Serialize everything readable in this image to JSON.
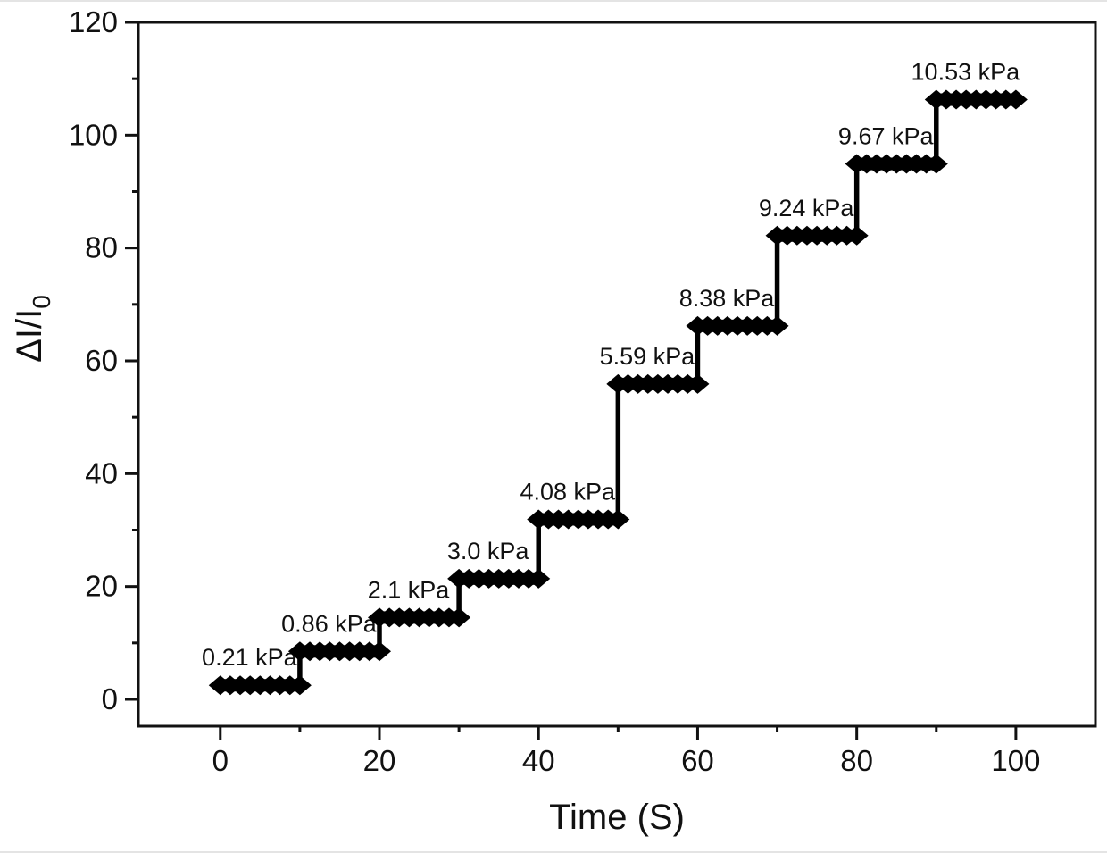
{
  "figure": {
    "background": "#ffffff",
    "ink_color": "#111111",
    "marker_color": "#000000"
  },
  "chart_data": {
    "type": "step",
    "title": "",
    "xlabel": "Time (S)",
    "ylabel": "ΔI/I₀",
    "ylabel_base": "ΔI/I",
    "ylabel_sub": "0",
    "xlim": [
      -10.3,
      110
    ],
    "ylim": [
      -4.75,
      120
    ],
    "x_major_ticks": [
      0,
      20,
      40,
      60,
      80,
      100
    ],
    "x_minor_ticks": [
      10,
      30,
      50,
      70,
      90
    ],
    "y_major_ticks": [
      0,
      20,
      40,
      60,
      80,
      100,
      120
    ],
    "y_minor_ticks": [
      10,
      30,
      50,
      70,
      90,
      110
    ],
    "grid": false,
    "legend": "none",
    "marker": "diamond",
    "series": [
      {
        "name": "pressure-step-response",
        "steps": [
          {
            "label": "0.21 kPa",
            "t_start": 0,
            "t_end": 10,
            "value": 2.5
          },
          {
            "label": "0.86 kPa",
            "t_start": 10,
            "t_end": 20,
            "value": 8.5
          },
          {
            "label": "2.1 kPa",
            "t_start": 20,
            "t_end": 30,
            "value": 14.5
          },
          {
            "label": "3.0 kPa",
            "t_start": 30,
            "t_end": 40,
            "value": 21.4
          },
          {
            "label": "4.08 kPa",
            "t_start": 40,
            "t_end": 50,
            "value": 31.9
          },
          {
            "label": "5.59 kPa",
            "t_start": 50,
            "t_end": 60,
            "value": 55.9
          },
          {
            "label": "8.38 kPa",
            "t_start": 60,
            "t_end": 70,
            "value": 66.2
          },
          {
            "label": "9.24 kPa",
            "t_start": 70,
            "t_end": 80,
            "value": 82.2
          },
          {
            "label": "9.67 kPa",
            "t_start": 80,
            "t_end": 90,
            "value": 94.9
          },
          {
            "label": "10.53 kPa",
            "t_start": 90,
            "t_end": 100,
            "value": 106.3
          }
        ]
      }
    ]
  }
}
